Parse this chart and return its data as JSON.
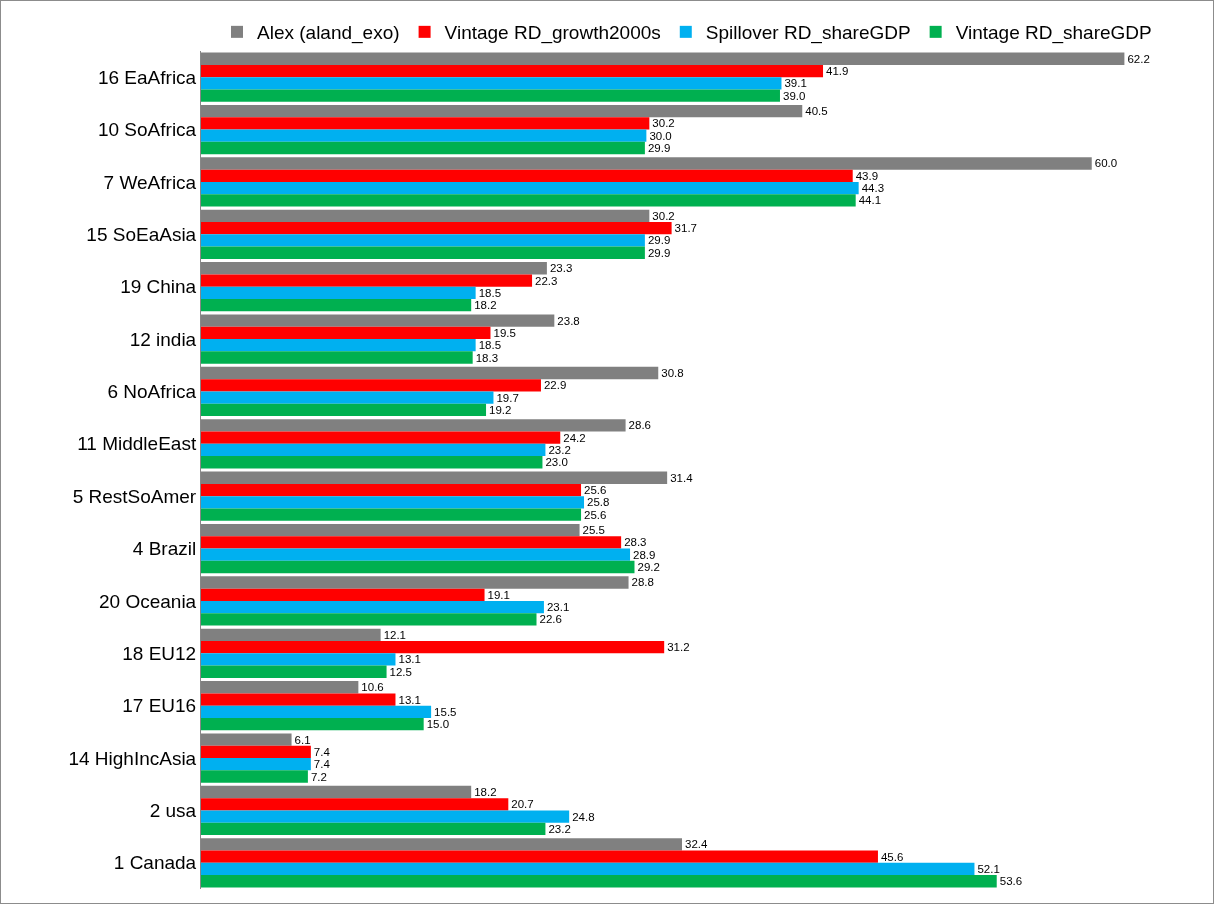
{
  "chart_data": {
    "type": "bar",
    "orientation": "horizontal",
    "legend": "top",
    "tick_labels": "y",
    "categories": [
      "16 EaAfrica",
      "10 SoAfrica",
      "7 WeAfrica",
      "15 SoEaAsia",
      "19 China",
      "12 india",
      "6 NoAfrica",
      "11 MiddleEast",
      "5 RestSoAmer",
      "4 Brazil",
      "20 Oceania",
      "18 EU12",
      "17 EU16",
      "14 HighIncAsia",
      "2 usa",
      "1 Canada"
    ],
    "series": [
      {
        "name": "Alex (aland_exo)",
        "color": "#808080",
        "values": [
          62.2,
          40.5,
          60.0,
          30.2,
          23.3,
          23.8,
          30.8,
          28.6,
          31.4,
          25.5,
          28.8,
          12.1,
          10.6,
          6.1,
          18.2,
          32.4
        ],
        "value_labels": [
          "62.2",
          "40.5",
          "60.0",
          "30.2",
          "23.3",
          "23.8",
          "30.8",
          "28.6",
          "31.4",
          "25.5",
          "28.8",
          "12.1",
          "10.6",
          "6.1",
          "18.2",
          "32.4"
        ]
      },
      {
        "name": "Vintage RD_growth2000s",
        "color": "#ff0000",
        "values": [
          41.9,
          30.2,
          43.9,
          31.7,
          22.3,
          19.5,
          22.9,
          24.2,
          25.6,
          28.3,
          19.1,
          31.2,
          13.1,
          7.4,
          20.7,
          45.6
        ],
        "value_labels": [
          "41.9",
          "30.2",
          "43.9",
          "31.7",
          "22.3",
          "19.5",
          "22.9",
          "24.2",
          "25.6",
          "28.3",
          "19.1",
          "31.2",
          "13.1",
          "7.4",
          "20.7",
          "45.6"
        ]
      },
      {
        "name": "Spillover RD_shareGDP",
        "color": "#00b0f0",
        "values": [
          39.1,
          30.0,
          44.3,
          29.9,
          18.5,
          18.5,
          19.7,
          23.2,
          25.8,
          28.9,
          23.1,
          13.1,
          15.5,
          7.4,
          24.8,
          52.1
        ],
        "value_labels": [
          "39.1",
          "30.0",
          "44.3",
          "29.9",
          "18.5",
          "18.5",
          "19.7",
          "23.2",
          "25.8",
          "28.9",
          "23.1",
          "13.1",
          "15.5",
          "7.4",
          "24.8",
          "52.1"
        ]
      },
      {
        "name": "Vintage RD_shareGDP",
        "color": "#00b050",
        "values": [
          39.0,
          29.9,
          44.1,
          29.9,
          18.2,
          18.3,
          19.2,
          23.0,
          25.6,
          29.2,
          22.6,
          12.5,
          15.0,
          7.2,
          23.2,
          53.6
        ],
        "value_labels": [
          "39.0",
          "29.9",
          "44.1",
          "29.9",
          "18.2",
          "18.3",
          "19.2",
          "23.0",
          "25.6",
          "29.2",
          "22.6",
          "12.5",
          "15.0",
          "7.2",
          "23.2",
          "53.6"
        ]
      }
    ]
  }
}
